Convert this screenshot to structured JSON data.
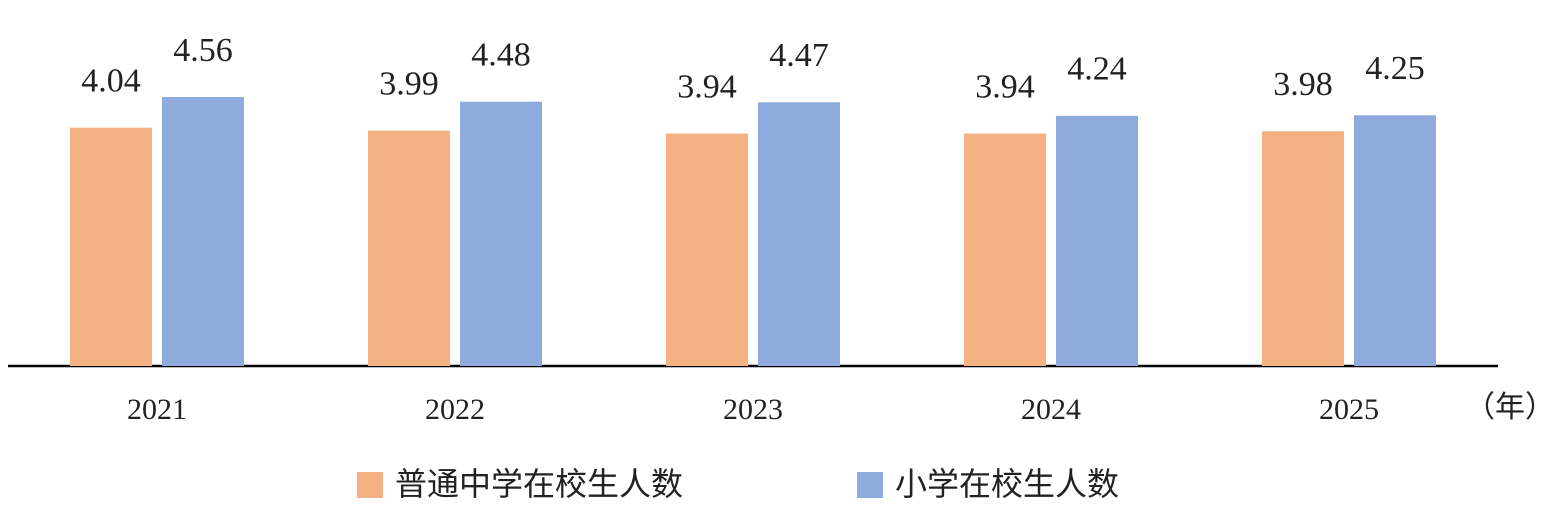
{
  "chart_data": {
    "type": "bar",
    "categories": [
      "2021",
      "2022",
      "2023",
      "2024",
      "2025"
    ],
    "xlabel": "（年）",
    "series": [
      {
        "name": "普通中学在校生人数",
        "color": "#f4b183",
        "values": [
          4.04,
          3.99,
          3.94,
          3.94,
          3.98
        ]
      },
      {
        "name": "小学在校生人数",
        "color": "#8faadc",
        "values": [
          4.56,
          4.48,
          4.47,
          4.24,
          4.25
        ]
      }
    ]
  }
}
